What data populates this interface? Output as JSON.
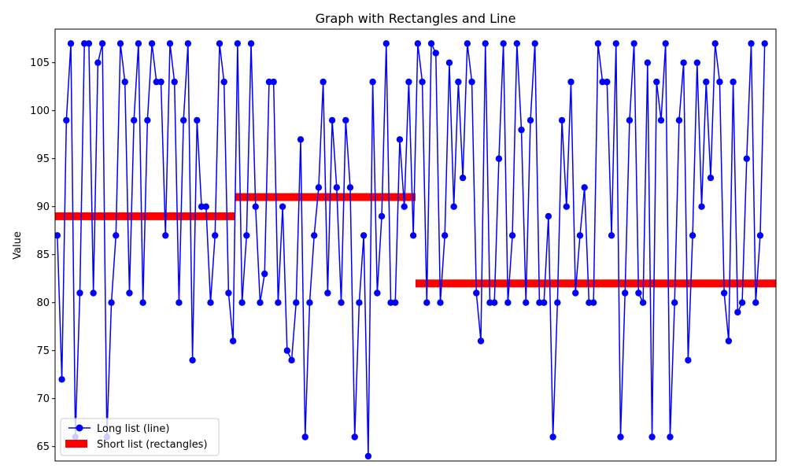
{
  "chart_data": {
    "type": "line",
    "title": "Graph with Rectangles and Line",
    "xlabel": "",
    "ylabel": "Value",
    "xlim": [
      -0.5,
      159.5
    ],
    "ylim": [
      63.5,
      108.5
    ],
    "yticks": [
      65,
      70,
      75,
      80,
      85,
      90,
      95,
      100,
      105
    ],
    "x_ticks_visible": false,
    "grid": false,
    "legend_position": "bottom-left",
    "series": [
      {
        "name": "Long list (line)",
        "kind": "line",
        "color": "#0000ff",
        "marker": "circle",
        "values": [
          87,
          72,
          99,
          107,
          66,
          81,
          107,
          107,
          81,
          105,
          107,
          66,
          80,
          87,
          107,
          103,
          81,
          99,
          107,
          80,
          99,
          107,
          103,
          103,
          87,
          107,
          103,
          80,
          99,
          107,
          74,
          99,
          90,
          90,
          80,
          87,
          107,
          103,
          81,
          76,
          107,
          80,
          87,
          107,
          90,
          80,
          83,
          103,
          103,
          80,
          90,
          75,
          74,
          80,
          97,
          66,
          80,
          87,
          92,
          103,
          81,
          99,
          92,
          80,
          99,
          92,
          66,
          80,
          87,
          64,
          103,
          81,
          89,
          107,
          80,
          80,
          97,
          90,
          103,
          87,
          107,
          103,
          80,
          107,
          106,
          80,
          87,
          105,
          90,
          103,
          93,
          107,
          103,
          81,
          76,
          107,
          80,
          80,
          95,
          107,
          80,
          87,
          107,
          98,
          80,
          99,
          107,
          80,
          80,
          89,
          66,
          80,
          99,
          90,
          103,
          81,
          87,
          92,
          80,
          80,
          107,
          103,
          103,
          87,
          107,
          66,
          81,
          99,
          107,
          81,
          80,
          105,
          66,
          103,
          99,
          107,
          66,
          80,
          99,
          105,
          74,
          87,
          105,
          90,
          103,
          93,
          107,
          103,
          81,
          76,
          103,
          79,
          80,
          95,
          107,
          80,
          87,
          107
        ]
      },
      {
        "name": "Short list (rectangles)",
        "kind": "rectangles",
        "color": "#ff0000",
        "segments": [
          {
            "x_start": 0,
            "x_end": 40,
            "value": 89
          },
          {
            "x_start": 40,
            "x_end": 80,
            "value": 91
          },
          {
            "x_start": 80,
            "x_end": 160,
            "value": 82
          }
        ]
      }
    ]
  }
}
